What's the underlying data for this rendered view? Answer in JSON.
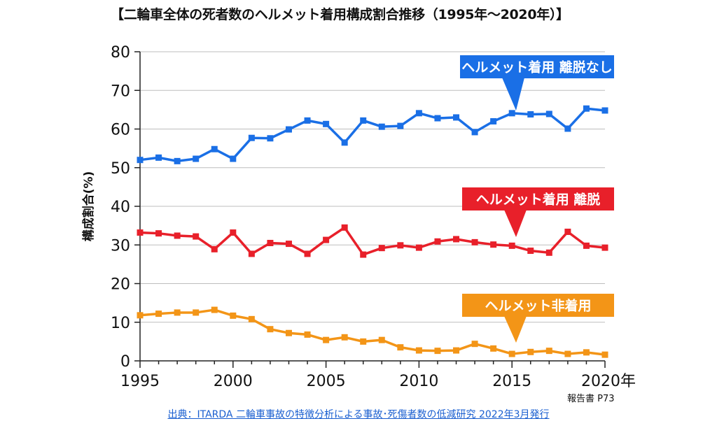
{
  "chart_data": {
    "type": "line",
    "title": "【二輪車全体の死者数のヘルメット着用構成割合推移（1995年～2020年）】",
    "ylabel": "構成割合(%)",
    "x_axis_end_label": "2020年",
    "ylim": [
      0,
      80
    ],
    "yticks": [
      0,
      10,
      20,
      30,
      40,
      50,
      60,
      70,
      80
    ],
    "xlim": [
      1995,
      2020
    ],
    "xticks": [
      1995,
      2000,
      2005,
      2010,
      2015
    ],
    "grid": true,
    "x": [
      1995,
      1996,
      1997,
      1998,
      1999,
      2000,
      2001,
      2002,
      2003,
      2004,
      2005,
      2006,
      2007,
      2008,
      2009,
      2010,
      2011,
      2012,
      2013,
      2014,
      2015,
      2016,
      2017,
      2018,
      2019,
      2020
    ],
    "series": [
      {
        "name": "ヘルメット着用 離脱なし",
        "color": "#1a6fe6",
        "values": [
          52.0,
          52.6,
          51.7,
          52.3,
          54.8,
          52.3,
          57.7,
          57.6,
          59.9,
          62.2,
          61.3,
          56.5,
          62.2,
          60.6,
          60.8,
          64.1,
          62.8,
          63.0,
          59.2,
          62.0,
          64.1,
          63.8,
          63.9,
          60.1,
          65.3,
          64.8
        ]
      },
      {
        "name": "ヘルメット着用 離脱",
        "color": "#e8202a",
        "values": [
          33.2,
          33.0,
          32.4,
          32.2,
          28.9,
          33.2,
          27.7,
          30.5,
          30.3,
          27.7,
          31.3,
          34.5,
          27.5,
          29.2,
          29.9,
          29.3,
          30.9,
          31.5,
          30.7,
          30.1,
          29.8,
          28.5,
          28.0,
          33.4,
          29.8,
          29.3
        ]
      },
      {
        "name": "ヘルメット非着用",
        "color": "#f39517",
        "values": [
          11.8,
          12.2,
          12.5,
          12.5,
          13.2,
          11.7,
          10.8,
          8.2,
          7.2,
          6.8,
          5.4,
          6.1,
          5.0,
          5.4,
          3.5,
          2.7,
          2.6,
          2.7,
          4.4,
          3.2,
          1.8,
          2.3,
          2.6,
          1.8,
          2.2,
          1.6
        ]
      }
    ],
    "annotations": {
      "source": "出典：ITARDA 二輪車事故の特徴分析による事故･死傷者数の低減研究 2022年3月発行",
      "report_ref": "報告書 P73"
    }
  }
}
